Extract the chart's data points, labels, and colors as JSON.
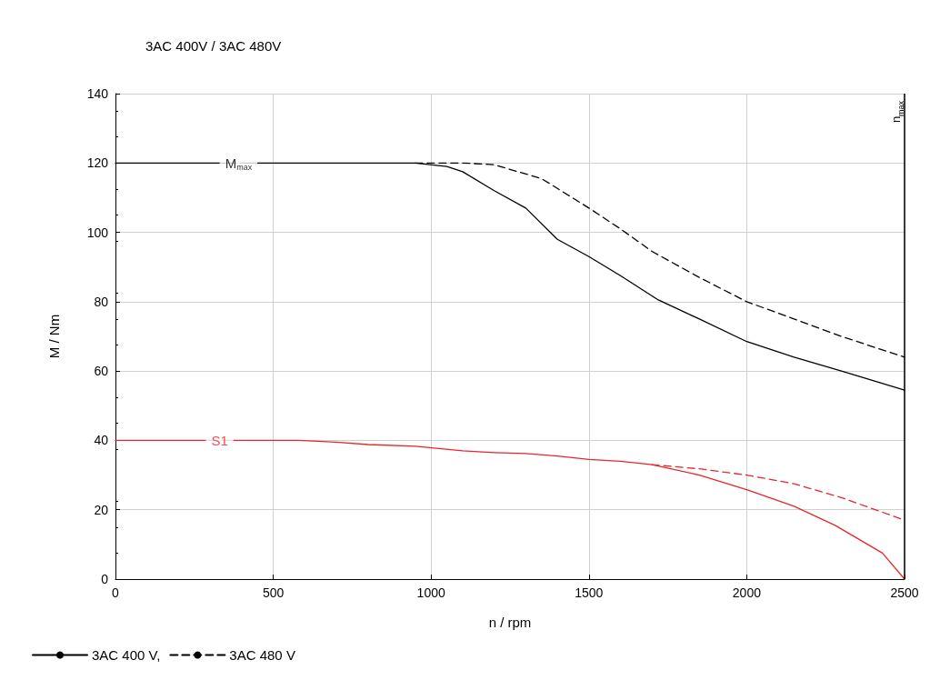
{
  "chart_data": {
    "type": "line",
    "title": "3AC 400V / 3AC 480V",
    "xlabel": "n / rpm",
    "ylabel": "M / Nm",
    "xlim": [
      0,
      2500
    ],
    "xticks": [
      0,
      500,
      1000,
      1500,
      2000,
      2500
    ],
    "ylim": [
      0,
      140
    ],
    "yticks": [
      0,
      20,
      40,
      60,
      80,
      100,
      120,
      140
    ],
    "grid": true,
    "legend": "bottom left",
    "marker": "none",
    "series": [
      {
        "name": "3AC 400 V,",
        "color": "#000000",
        "line_style": "solid",
        "x": [
          0,
          950,
          1050,
          1100,
          1200,
          1300,
          1400,
          1500,
          1600,
          1720,
          1850,
          2000,
          2150,
          2300,
          2500
        ],
        "values": [
          120,
          120,
          119,
          117.5,
          112,
          107,
          98,
          93,
          87.5,
          80.5,
          75,
          68.5,
          64,
          60,
          54.5
        ]
      },
      {
        "name": "3AC 480 V",
        "color": "#000000",
        "line_style": "dashed",
        "x": [
          950,
          1100,
          1200,
          1350,
          1500,
          1600,
          1700,
          1850,
          2000,
          2150,
          2300,
          2500
        ],
        "values": [
          120,
          120,
          119.5,
          115.5,
          107,
          101,
          94.5,
          87,
          80,
          75,
          70,
          64
        ]
      },
      {
        "color": "#e8262a",
        "line_style": "solid",
        "x": [
          0,
          580,
          700,
          800,
          950,
          1100,
          1200,
          1300,
          1400,
          1500,
          1600,
          1700,
          1850,
          2000,
          2150,
          2280,
          2430,
          2500
        ],
        "values": [
          40,
          40,
          39.5,
          38.8,
          38.3,
          37,
          36.5,
          36.2,
          35.5,
          34.5,
          34,
          33,
          30,
          25.8,
          21,
          15.5,
          7.5,
          0
        ]
      },
      {
        "color": "#e8262a",
        "line_style": "dashed",
        "x": [
          1700,
          1850,
          2000,
          2150,
          2300,
          2500
        ],
        "values": [
          33,
          31.8,
          30,
          27.5,
          23.5,
          17
        ]
      }
    ],
    "ref_lines": [
      {
        "axis": "x",
        "value": 2500,
        "label": "n$_{max}$",
        "color": "#000000"
      }
    ],
    "annotations": [
      {
        "text": "M$_{max}$",
        "x": 390,
        "y": 120
      },
      {
        "text": "S1",
        "x": 330,
        "y": 40
      }
    ]
  }
}
